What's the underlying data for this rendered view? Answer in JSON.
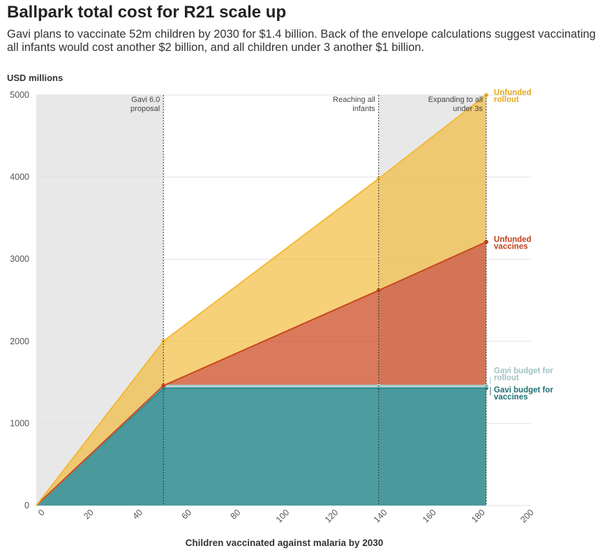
{
  "chart_data": {
    "type": "area",
    "title": "Ballpark total cost for R21 scale up",
    "subtitle": "Gavi plans to vaccinate 52m children by 2030 for $1.4 billion. Back of the envelope calculations suggest vaccinating all infants would cost another $2 billion, and all children under 3 another $1 billion.",
    "ylabel": "USD millions",
    "xlabel": "Children vaccinated against malaria by 2030",
    "xlim": [
      0,
      200
    ],
    "ylim": [
      0,
      5000
    ],
    "xticks": [
      0,
      20,
      40,
      60,
      80,
      100,
      120,
      140,
      160,
      180,
      200
    ],
    "yticks": [
      0,
      1000,
      2000,
      3000,
      4000,
      5000
    ],
    "grid": true,
    "x": [
      0,
      52,
      140,
      184
    ],
    "series": [
      {
        "name": "Gavi budget for vaccines",
        "color": "#2e8b8f",
        "values": [
          0,
          1430,
          1430,
          1430
        ]
      },
      {
        "name": "Gavi budget for rollout",
        "color": "#a8cccc",
        "values": [
          0,
          1460,
          1460,
          1460
        ]
      },
      {
        "name": "Unfunded vaccines",
        "color": "#c9471c",
        "values": [
          0,
          1460,
          2620,
          3210
        ]
      },
      {
        "name": "Unfunded rollout",
        "color": "#f3b933",
        "values": [
          0,
          2000,
          3980,
          5000
        ]
      }
    ],
    "shaded_ranges": [
      [
        0,
        52
      ],
      [
        140,
        184
      ]
    ],
    "annotations": [
      {
        "x": 52,
        "lines": [
          "Gavi 6.0",
          "proposal"
        ]
      },
      {
        "x": 140,
        "lines": [
          "Reaching all",
          "infants"
        ]
      },
      {
        "x": 184,
        "lines": [
          "Expanding to all",
          "under 3s"
        ]
      }
    ],
    "series_labels": [
      {
        "series": 3,
        "lines": [
          "Unfunded",
          "rollout"
        ]
      },
      {
        "series": 2,
        "lines": [
          "Unfunded",
          "vaccines"
        ]
      },
      {
        "series": 1,
        "lines": [
          "Gavi budget for",
          "rollout"
        ]
      },
      {
        "series": 0,
        "lines": [
          "Gavi budget for",
          "vaccines"
        ]
      }
    ]
  }
}
